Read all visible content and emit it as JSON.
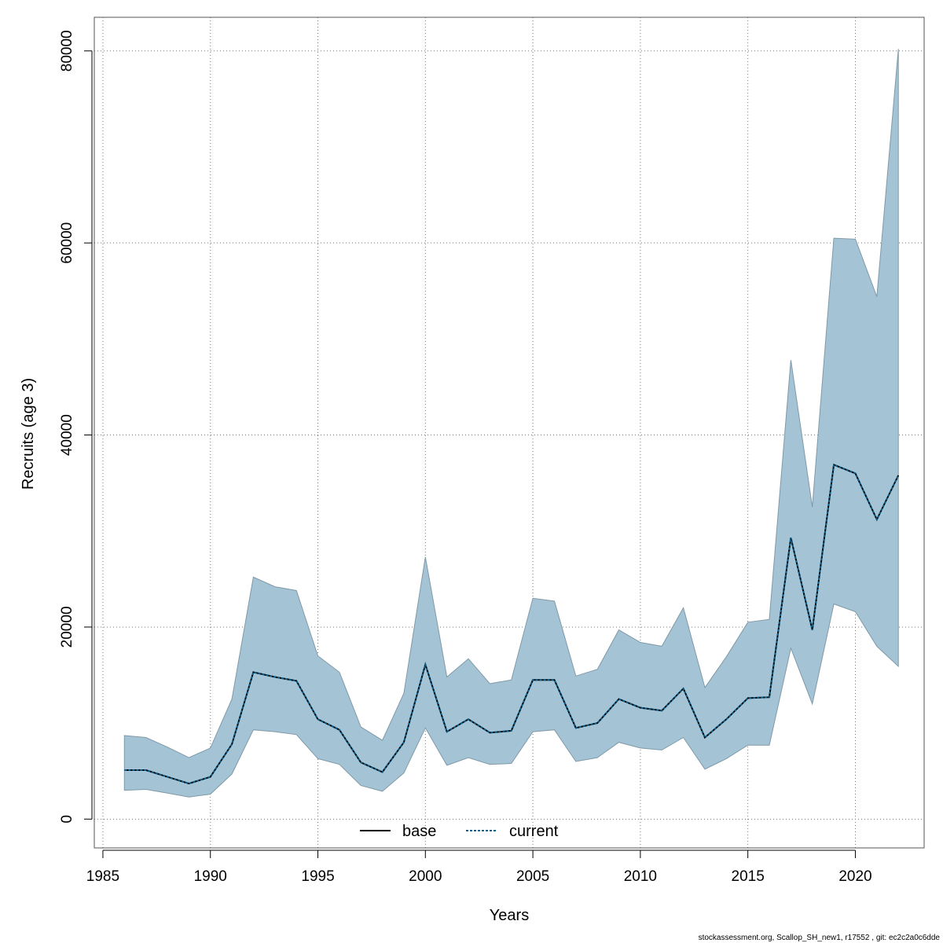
{
  "chart_data": {
    "type": "line",
    "xlabel": "Years",
    "ylabel": "Recruits (age 3)",
    "xlim": [
      1984.6,
      2023.2
    ],
    "ylim": [
      -3000,
      83500
    ],
    "x_ticks": [
      1985,
      1990,
      1995,
      2000,
      2005,
      2010,
      2015,
      2020
    ],
    "y_ticks": [
      0,
      20000,
      40000,
      60000,
      80000
    ],
    "grid": true,
    "legend_position": "bottom-center",
    "x": [
      1986,
      1987,
      1988,
      1989,
      1990,
      1991,
      1992,
      1993,
      1994,
      1995,
      1996,
      1997,
      1998,
      1999,
      2000,
      2001,
      2002,
      2003,
      2004,
      2005,
      2006,
      2007,
      2008,
      2009,
      2010,
      2011,
      2012,
      2013,
      2014,
      2015,
      2016,
      2017,
      2018,
      2019,
      2020,
      2021,
      2022
    ],
    "series": [
      {
        "name": "base",
        "line_style": "solid",
        "color": "#000000",
        "values": [
          5100,
          5100,
          4400,
          3700,
          4400,
          7800,
          15300,
          14800,
          14400,
          10400,
          9300,
          5900,
          4900,
          8000,
          16100,
          9100,
          10400,
          9000,
          9200,
          14500,
          14500,
          9500,
          10000,
          12500,
          11600,
          11300,
          13600,
          8500,
          10400,
          12600,
          12700,
          29300,
          19700,
          36900,
          36000,
          31200,
          35800
        ]
      },
      {
        "name": "current",
        "line_style": "dotted",
        "color": "#0a5f8c",
        "values": [
          5100,
          5100,
          4400,
          3700,
          4400,
          7800,
          15300,
          14800,
          14400,
          10400,
          9300,
          5900,
          4900,
          8000,
          16100,
          9100,
          10400,
          9000,
          9200,
          14500,
          14500,
          9500,
          10000,
          12500,
          11600,
          11300,
          13600,
          8500,
          10400,
          12600,
          12700,
          29300,
          19700,
          36900,
          36000,
          31200,
          35800
        ]
      }
    ],
    "confidence_band": {
      "lower": [
        3000,
        3100,
        2700,
        2300,
        2600,
        4700,
        9300,
        9100,
        8800,
        6300,
        5700,
        3500,
        2900,
        4800,
        9500,
        5600,
        6400,
        5700,
        5800,
        9100,
        9300,
        6000,
        6400,
        8000,
        7400,
        7200,
        8500,
        5200,
        6300,
        7700,
        7700,
        17800,
        12000,
        22400,
        21600,
        18000,
        15900
      ],
      "upper": [
        8700,
        8500,
        7500,
        6400,
        7400,
        12500,
        25200,
        24200,
        23800,
        17000,
        15300,
        9600,
        8200,
        13100,
        27300,
        14800,
        16700,
        14100,
        14500,
        23000,
        22700,
        14900,
        15600,
        19700,
        18400,
        18000,
        22000,
        13700,
        16900,
        20500,
        20800,
        47800,
        32500,
        60500,
        60400,
        54400,
        80200
      ],
      "fill_color": "#a4c4d5",
      "stroke_color": "#7f99a8"
    }
  },
  "footer": "stockassessment.org, Scallop_SH_new1, r17552 , git: ec2c2a0c6dde"
}
